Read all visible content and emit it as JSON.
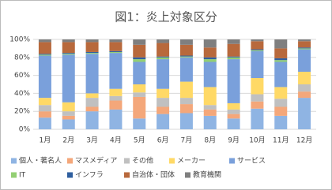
{
  "chart_data": {
    "type": "stacked_bar_100",
    "title": "図1：炎上対象区分",
    "categories": [
      "1月",
      "2月",
      "3月",
      "4月",
      "5月",
      "6月",
      "7月",
      "8月",
      "9月",
      "10月",
      "11月",
      "12月"
    ],
    "ylim": [
      0,
      100
    ],
    "yticks": [
      {
        "value": 0,
        "label": "0%"
      },
      {
        "value": 20,
        "label": "20%"
      },
      {
        "value": 40,
        "label": "40%"
      },
      {
        "value": 60,
        "label": "60%"
      },
      {
        "value": 80,
        "label": "80%"
      },
      {
        "value": 100,
        "label": "100%"
      }
    ],
    "grid": true,
    "series": [
      {
        "name": "個人・著名人",
        "color": "#8fb4e3",
        "values": [
          13,
          11,
          20,
          22,
          12,
          17,
          18,
          15,
          12,
          23,
          15,
          35
        ]
      },
      {
        "name": "マスメディア",
        "color": "#f4a77a",
        "values": [
          7,
          4,
          5,
          10,
          24,
          8,
          10,
          7,
          5,
          8,
          10,
          7
        ]
      },
      {
        "name": "その他",
        "color": "#c0c0c0",
        "values": [
          7,
          5,
          10,
          5,
          5,
          10,
          7,
          5,
          5,
          8,
          9,
          8
        ]
      },
      {
        "name": "メーカー",
        "color": "#ffd966",
        "values": [
          8,
          10,
          5,
          8,
          9,
          10,
          18,
          20,
          7,
          18,
          13,
          14
        ]
      },
      {
        "name": "サービス",
        "color": "#7aa0db",
        "values": [
          47,
          53,
          44,
          40,
          25,
          33,
          27,
          28,
          49,
          30,
          28,
          25
        ]
      },
      {
        "name": "IT",
        "color": "#93cf74",
        "values": [
          1,
          1,
          1,
          1,
          3,
          2,
          1,
          3,
          2,
          1,
          2,
          1
        ]
      },
      {
        "name": "インフラ",
        "color": "#2f5f9f",
        "values": [
          1,
          1,
          1,
          1,
          2,
          1,
          1,
          2,
          1,
          1,
          2,
          1
        ]
      },
      {
        "name": "自治体・団体",
        "color": "#b8693c",
        "values": [
          13,
          12,
          11,
          10,
          14,
          15,
          12,
          11,
          14,
          9,
          11,
          7
        ]
      },
      {
        "name": "教育機関",
        "color": "#7f7f7f",
        "values": [
          3,
          3,
          3,
          3,
          6,
          4,
          6,
          9,
          5,
          2,
          10,
          2
        ]
      }
    ]
  }
}
